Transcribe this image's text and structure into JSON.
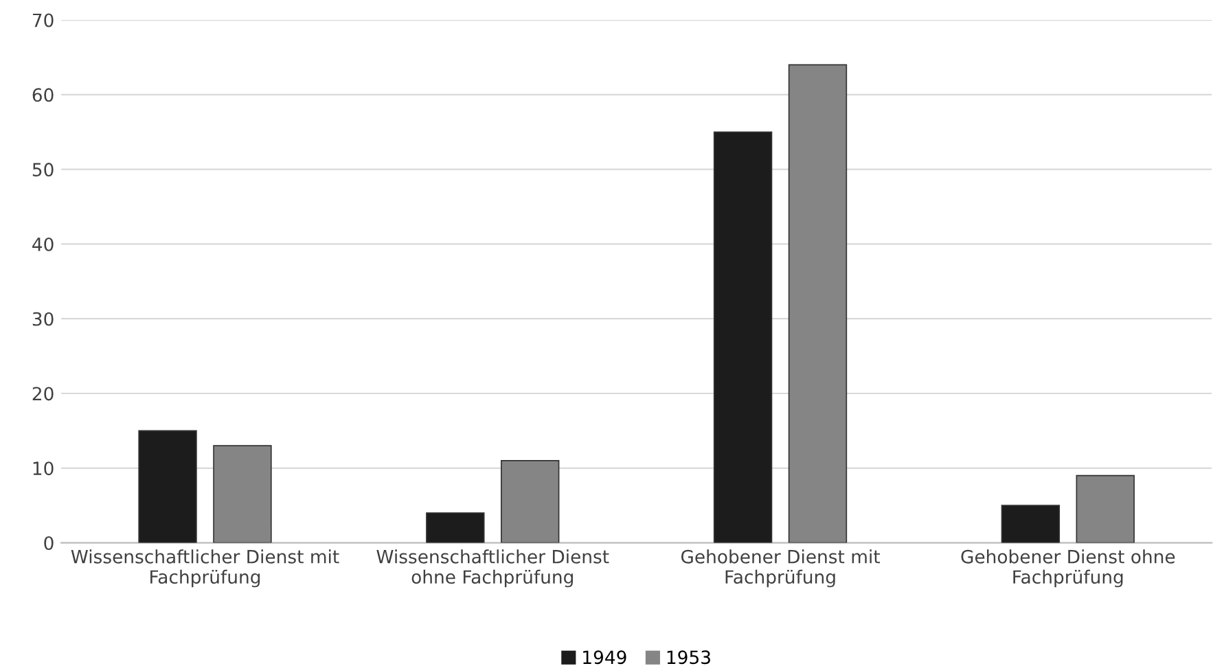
{
  "chart_data": {
    "type": "bar",
    "categories": [
      "Wissenschaftlicher Dienst mit\nFachprüfung",
      "Wissenschaftlicher Dienst\nohne Fachprüfung",
      "Gehobener Dienst mit\nFachprüfung",
      "Gehobener Dienst ohne\nFachprüfung"
    ],
    "series": [
      {
        "name": "1949",
        "color": "#1c1c1c",
        "values": [
          15,
          4,
          55,
          5
        ]
      },
      {
        "name": "1953",
        "color": "#858585",
        "values": [
          13,
          11,
          64,
          9
        ]
      }
    ],
    "ylim": [
      0,
      70
    ],
    "yticks": [
      0,
      10,
      20,
      30,
      40,
      50,
      60,
      70
    ],
    "grid": "y",
    "legend": "bottom"
  }
}
